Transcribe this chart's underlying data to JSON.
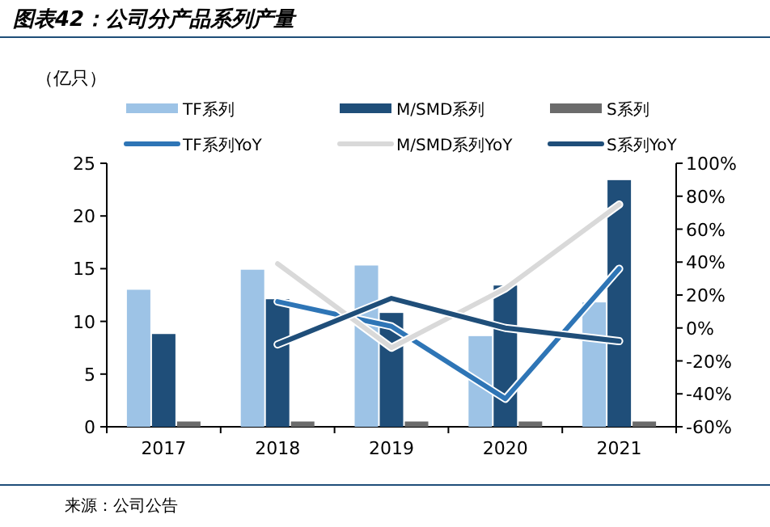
{
  "chart_data": {
    "type": "bar",
    "title": "图表42：公司分产品系列产量",
    "ylabel": "（亿只）",
    "categories": [
      "2017",
      "2018",
      "2019",
      "2020",
      "2021"
    ],
    "series": [
      {
        "name": "TF系列",
        "color": "#9dc3e6",
        "values": [
          13.0,
          14.9,
          15.3,
          8.6,
          11.8
        ]
      },
      {
        "name": "M/SMD系列",
        "color": "#1f4e79",
        "values": [
          8.8,
          12.1,
          10.8,
          13.4,
          23.4
        ]
      },
      {
        "name": "S系列",
        "color": "#6b6b6b",
        "values": [
          0.5,
          0.5,
          0.5,
          0.5,
          0.5
        ]
      },
      {
        "name": "TF系列YoY",
        "type": "line",
        "axis": "y2",
        "color": "#2e75b6",
        "values": [
          null,
          16,
          1,
          -43,
          36
        ]
      },
      {
        "name": "M/SMD系列YoY",
        "type": "line",
        "axis": "y2",
        "color": "#d9d9d9",
        "values": [
          null,
          39,
          -12,
          24,
          75
        ]
      },
      {
        "name": "S系列YoY",
        "type": "line",
        "axis": "y2",
        "color": "#1f4e79",
        "values": [
          null,
          -10,
          18,
          0,
          -8
        ]
      }
    ],
    "ylim": [
      0,
      25
    ],
    "yticks": [
      0,
      5,
      10,
      15,
      20,
      25
    ],
    "y2lim": [
      -60,
      100
    ],
    "y2ticks": [
      {
        "value": -60,
        "label": "-60%"
      },
      {
        "value": -40,
        "label": "-40%"
      },
      {
        "value": -20,
        "label": "-20%"
      },
      {
        "value": 0,
        "label": "0%"
      },
      {
        "value": 20,
        "label": "20%"
      },
      {
        "value": 40,
        "label": "40%"
      },
      {
        "value": 60,
        "label": "60%"
      },
      {
        "value": 80,
        "label": "80%"
      },
      {
        "value": 100,
        "label": "100%"
      }
    ],
    "grid": false,
    "legend": "top",
    "annotations": [
      "来源：公司公告"
    ]
  }
}
